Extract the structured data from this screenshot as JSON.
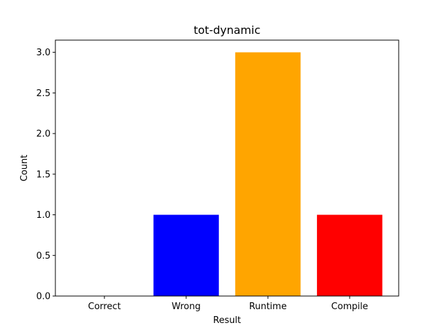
{
  "chart_data": {
    "type": "bar",
    "title": "tot-dynamic",
    "xlabel": "Result",
    "ylabel": "Count",
    "categories": [
      "Correct",
      "Wrong",
      "Runtime",
      "Compile"
    ],
    "values": [
      0,
      1,
      3,
      1
    ],
    "colors": [
      "#008000",
      "#0000ff",
      "#ffa500",
      "#ff0000"
    ],
    "ylim": [
      0,
      3.15
    ],
    "yticks": [
      0.0,
      0.5,
      1.0,
      1.5,
      2.0,
      2.5,
      3.0
    ],
    "ytick_labels": [
      "0.0",
      "0.5",
      "1.0",
      "1.5",
      "2.0",
      "2.5",
      "3.0"
    ],
    "grid": false,
    "legend": "none"
  }
}
